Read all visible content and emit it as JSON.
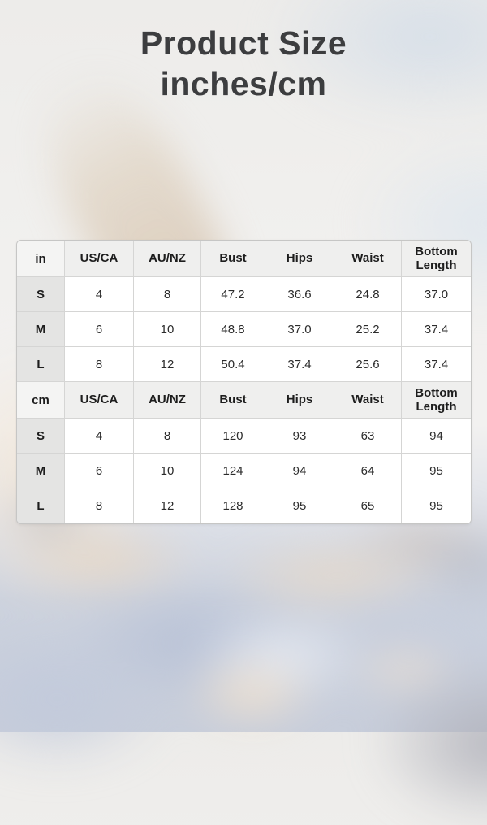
{
  "title": {
    "line1": "Product Size",
    "line2": "inches/cm"
  },
  "colors": {
    "title_text": "#3c3d3f",
    "table_header_bg": "#efefee",
    "table_corner_bg": "#f4f4f3",
    "table_label_bg": "#e4e4e3",
    "table_cell_bg": "#ffffff",
    "table_border": "#d5d5d4",
    "cell_text": "#2b2b2b",
    "bg_warm": "#e9dcc9",
    "bg_blue": "#c3cbdc"
  },
  "chart_data": {
    "type": "table",
    "title": "Product Size inches/cm",
    "unit_column_headers": [
      "in",
      "cm"
    ],
    "column_headers": [
      "US/CA",
      "AU/NZ",
      "Bust",
      "Hips",
      "Waist",
      "Bottom Length"
    ],
    "sections": [
      {
        "unit": "in",
        "rows": [
          {
            "size": "S",
            "values": [
              "4",
              "8",
              "47.2",
              "36.6",
              "24.8",
              "37.0"
            ]
          },
          {
            "size": "M",
            "values": [
              "6",
              "10",
              "48.8",
              "37.0",
              "25.2",
              "37.4"
            ]
          },
          {
            "size": "L",
            "values": [
              "8",
              "12",
              "50.4",
              "37.4",
              "25.6",
              "37.4"
            ]
          }
        ]
      },
      {
        "unit": "cm",
        "rows": [
          {
            "size": "S",
            "values": [
              "4",
              "8",
              "120",
              "93",
              "63",
              "94"
            ]
          },
          {
            "size": "M",
            "values": [
              "6",
              "10",
              "124",
              "94",
              "64",
              "95"
            ]
          },
          {
            "size": "L",
            "values": [
              "8",
              "12",
              "128",
              "95",
              "65",
              "95"
            ]
          }
        ]
      }
    ]
  }
}
